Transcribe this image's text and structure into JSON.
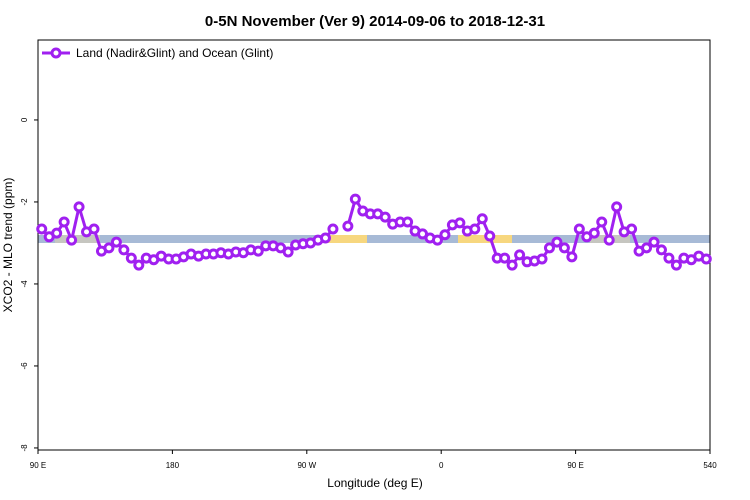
{
  "chart_data": {
    "type": "line",
    "title": "0-5N November (Ver 9)   2014-09-06 to 2018-12-31",
    "x_label": "Longitude (deg E)",
    "y_label": "XCO2 - MLO trend (ppm)",
    "xlim": [
      90,
      540
    ],
    "xticks": [
      {
        "value": 90,
        "label": "90 E"
      },
      180,
      {
        "value": 270,
        "label": "90 W"
      },
      {
        "value": 360,
        "label": "0"
      },
      {
        "value": 450,
        "label": "90 E"
      },
      540
    ],
    "ylim": [
      -8.05,
      1.95
    ],
    "yticks": [
      0,
      -2,
      -4,
      -6,
      -8
    ],
    "legend": "top-left",
    "x": [
      92.5,
      97.5,
      102.5,
      107.5,
      112.5,
      117.5,
      122.5,
      127.5,
      132.5,
      137.5,
      142.5,
      147.5,
      152.5,
      157.5,
      162.5,
      167.5,
      172.5,
      177.5,
      182.5,
      187.5,
      192.5,
      197.5,
      202.5,
      207.5,
      212.5,
      217.5,
      222.5,
      227.5,
      232.5,
      237.5,
      242.5,
      247.5,
      252.5,
      257.5,
      262.5,
      267.5,
      272.5,
      277.5,
      282.5,
      287.5,
      292.5,
      297.5,
      302.5,
      307.5,
      312.5,
      317.5,
      322.5,
      327.5,
      332.5,
      337.5,
      342.5,
      347.5,
      352.5,
      357.5,
      362.5,
      367.5,
      372.5,
      377.5,
      382.5,
      387.5,
      392.5,
      397.5,
      402.5,
      407.5,
      412.5,
      417.5,
      422.5,
      427.5,
      432.5,
      437.5,
      442.5,
      447.5,
      452.5,
      457.5,
      462.5,
      467.5,
      472.5,
      477.5,
      482.5,
      487.5,
      492.5,
      497.5,
      502.5,
      507.5,
      512.5,
      517.5,
      522.5,
      527.5,
      532.5,
      537.5
    ],
    "series": [
      {
        "name": "Land (Nadir&Glint) and Ocean (Glint)",
        "color": "#a020f0",
        "values": [
          -2.66,
          -2.85,
          -2.76,
          -2.49,
          -2.93,
          -2.12,
          -2.73,
          -2.66,
          -3.2,
          -3.12,
          -2.98,
          -3.17,
          -3.37,
          -3.54,
          -3.37,
          -3.41,
          -3.32,
          -3.39,
          -3.39,
          -3.34,
          -3.27,
          -3.32,
          -3.27,
          -3.27,
          -3.24,
          -3.27,
          -3.22,
          -3.24,
          -3.17,
          -3.2,
          -3.07,
          -3.07,
          -3.12,
          -3.22,
          -3.05,
          -3.02,
          -3.0,
          -2.93,
          -2.88,
          -2.66,
          null,
          -2.59,
          -1.93,
          -2.22,
          -2.29,
          -2.29,
          -2.37,
          -2.54,
          -2.49,
          -2.49,
          -2.71,
          -2.78,
          -2.88,
          -2.93,
          -2.8,
          -2.56,
          -2.51,
          -2.71,
          -2.66,
          -2.41,
          -2.83,
          -3.37,
          -3.37,
          -3.54,
          -3.29,
          -3.46,
          -3.44,
          -3.39,
          -3.12,
          -2.98,
          -3.12,
          -3.34,
          -2.66,
          -2.85,
          -2.76,
          -2.49,
          -2.93,
          -2.12,
          -2.73,
          -2.66,
          -3.2,
          -3.12,
          -2.98,
          -3.17,
          -3.37,
          -3.54,
          -3.37,
          -3.41,
          -3.32,
          -3.39
        ]
      }
    ]
  }
}
